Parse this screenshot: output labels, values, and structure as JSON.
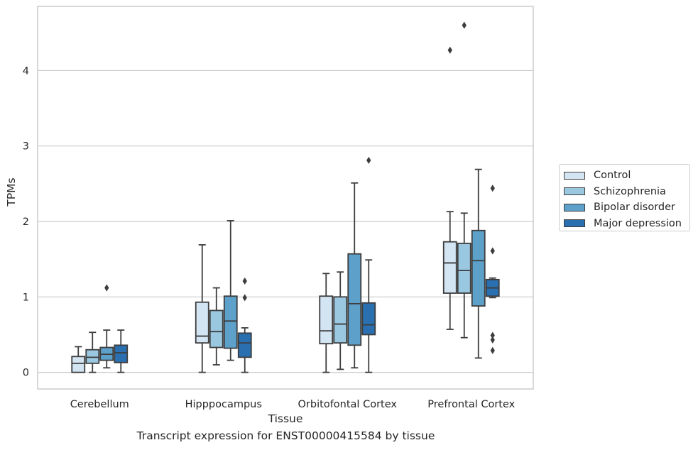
{
  "chart_data": {
    "type": "boxplot",
    "title": "",
    "caption": "Transcript expression for ENST00000415584 by tissue",
    "xlabel": "Tissue",
    "ylabel": "TPMs",
    "ylim": [
      -0.22,
      4.85
    ],
    "yticks": [
      0,
      1,
      2,
      3,
      4
    ],
    "grid": true,
    "legend_position": "right",
    "categories": [
      "Cerebellum",
      "Hipppocampus",
      "Orbitofontal Cortex",
      "Prefrontal Cortex"
    ],
    "series": [
      {
        "name": "Control",
        "color": "#d3e4f3",
        "boxes": [
          {
            "whislo": 0.0,
            "q1": 0.0,
            "med": 0.12,
            "q3": 0.21,
            "whishi": 0.34,
            "fliers": []
          },
          {
            "whislo": 0.0,
            "q1": 0.39,
            "med": 0.48,
            "q3": 0.93,
            "whishi": 1.69,
            "fliers": []
          },
          {
            "whislo": 0.0,
            "q1": 0.38,
            "med": 0.55,
            "q3": 1.01,
            "whishi": 1.31,
            "fliers": []
          },
          {
            "whislo": 0.57,
            "q1": 1.05,
            "med": 1.45,
            "q3": 1.73,
            "whishi": 2.13,
            "fliers": [
              4.27
            ]
          }
        ]
      },
      {
        "name": "Schizophrenia",
        "color": "#9ac8e0",
        "boxes": [
          {
            "whislo": 0.0,
            "q1": 0.12,
            "med": 0.2,
            "q3": 0.3,
            "whishi": 0.53,
            "fliers": []
          },
          {
            "whislo": 0.1,
            "q1": 0.33,
            "med": 0.54,
            "q3": 0.82,
            "whishi": 1.12,
            "fliers": []
          },
          {
            "whislo": 0.04,
            "q1": 0.39,
            "med": 0.64,
            "q3": 1.0,
            "whishi": 1.33,
            "fliers": []
          },
          {
            "whislo": 0.46,
            "q1": 1.05,
            "med": 1.35,
            "q3": 1.71,
            "whishi": 2.11,
            "fliers": [
              4.6
            ]
          }
        ]
      },
      {
        "name": "Bipolar disorder",
        "color": "#5da0ca",
        "boxes": [
          {
            "whislo": 0.06,
            "q1": 0.16,
            "med": 0.24,
            "q3": 0.33,
            "whishi": 0.56,
            "fliers": [
              1.12
            ]
          },
          {
            "whislo": 0.16,
            "q1": 0.32,
            "med": 0.68,
            "q3": 1.01,
            "whishi": 2.01,
            "fliers": []
          },
          {
            "whislo": 0.06,
            "q1": 0.36,
            "med": 0.91,
            "q3": 1.57,
            "whishi": 2.51,
            "fliers": []
          },
          {
            "whislo": 0.19,
            "q1": 0.88,
            "med": 1.48,
            "q3": 1.88,
            "whishi": 2.69,
            "fliers": []
          }
        ]
      },
      {
        "name": "Major depression",
        "color": "#2a6faf",
        "boxes": [
          {
            "whislo": 0.0,
            "q1": 0.13,
            "med": 0.26,
            "q3": 0.36,
            "whishi": 0.56,
            "fliers": []
          },
          {
            "whislo": 0.0,
            "q1": 0.2,
            "med": 0.39,
            "q3": 0.52,
            "whishi": 0.59,
            "fliers": [
              1.21,
              0.99
            ]
          },
          {
            "whislo": 0.0,
            "q1": 0.5,
            "med": 0.63,
            "q3": 0.92,
            "whishi": 1.49,
            "fliers": [
              2.81
            ]
          },
          {
            "whislo": 0.99,
            "q1": 1.01,
            "med": 1.12,
            "q3": 1.23,
            "whishi": 1.25,
            "fliers": [
              2.44,
              1.61,
              0.49,
              0.43,
              0.29
            ]
          }
        ]
      }
    ]
  }
}
